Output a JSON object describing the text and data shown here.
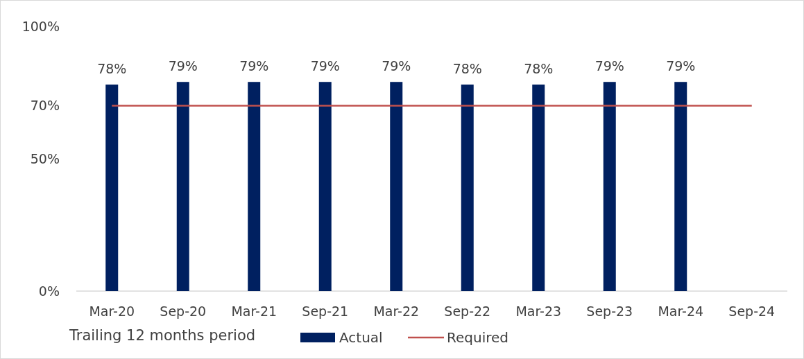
{
  "chart_data": {
    "type": "bar",
    "xlabel": "Trailing 12 months period",
    "categories": [
      "Mar-20",
      "Sep-20",
      "Mar-21",
      "Sep-21",
      "Mar-22",
      "Sep-22",
      "Mar-23",
      "Sep-23",
      "Mar-24",
      "Sep-24"
    ],
    "series": [
      {
        "name": "Actual",
        "color": "#002060",
        "values": [
          78,
          79,
          79,
          79,
          79,
          78,
          78,
          79,
          79,
          null
        ],
        "value_labels": [
          "78%",
          "79%",
          "79%",
          "79%",
          "79%",
          "78%",
          "78%",
          "79%",
          "79%",
          null
        ]
      },
      {
        "name": "Required",
        "type": "line",
        "color": "#c0504d",
        "values": [
          70,
          70,
          70,
          70,
          70,
          70,
          70,
          70,
          70,
          70
        ]
      }
    ],
    "ylim": [
      0,
      100
    ],
    "yticks": [
      {
        "value": 0,
        "label": "0%"
      },
      {
        "value": 50,
        "label": "50%"
      },
      {
        "value": 70,
        "label": "70%"
      },
      {
        "value": 100,
        "label": "100%"
      }
    ],
    "grid": false,
    "legend": "bottom"
  }
}
